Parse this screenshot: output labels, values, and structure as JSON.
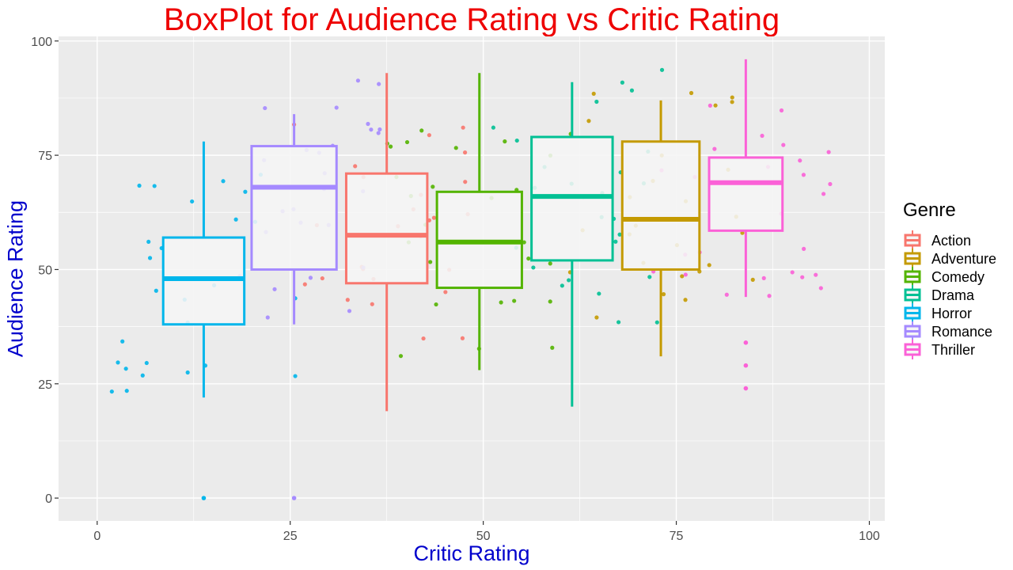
{
  "chart_data": {
    "type": "boxplot",
    "title": "BoxPlot for Audience Rating vs Critic Rating",
    "xlabel": "Critic Rating",
    "ylabel": "Audience Rating",
    "xlim": [
      -5,
      102
    ],
    "ylim": [
      -5,
      101
    ],
    "x_ticks": [
      0,
      25,
      50,
      75,
      100
    ],
    "y_ticks": [
      0,
      25,
      50,
      75,
      100
    ],
    "grid": true,
    "legend": {
      "title": "Genre",
      "position": "right"
    },
    "colors": {
      "panel_bg": "#EBEBEB",
      "grid": "#FFFFFF",
      "title": "#EE0000",
      "axis_title": "#0000CC",
      "box_fill": "#F5F5F5"
    },
    "series": [
      {
        "name": "Action",
        "color": "#F8766D",
        "x": 37.5,
        "width": 10.5,
        "q1": 47,
        "median": 57.5,
        "q3": 71,
        "whisker_low": 19,
        "whisker_high": 93,
        "outliers": []
      },
      {
        "name": "Adventure",
        "color": "#C49A00",
        "x": 73,
        "width": 10,
        "q1": 50,
        "median": 61,
        "q3": 78,
        "whisker_low": 31,
        "whisker_high": 87,
        "outliers": []
      },
      {
        "name": "Comedy",
        "color": "#53B400",
        "x": 49.5,
        "width": 11,
        "q1": 46,
        "median": 56,
        "q3": 67,
        "whisker_low": 28,
        "whisker_high": 93,
        "outliers": []
      },
      {
        "name": "Drama",
        "color": "#00C094",
        "x": 61.5,
        "width": 10.5,
        "q1": 52,
        "median": 66,
        "q3": 79,
        "whisker_low": 20,
        "whisker_high": 91,
        "outliers": []
      },
      {
        "name": "Horror",
        "color": "#00B6EB",
        "x": 13.8,
        "width": 10.5,
        "q1": 38,
        "median": 48,
        "q3": 57,
        "whisker_low": 22,
        "whisker_high": 78,
        "outliers": [
          0
        ]
      },
      {
        "name": "Romance",
        "color": "#A58AFF",
        "x": 25.5,
        "width": 11,
        "q1": 50,
        "median": 68,
        "q3": 77,
        "whisker_low": 38,
        "whisker_high": 84,
        "outliers": [
          0
        ]
      },
      {
        "name": "Thriller",
        "color": "#FB61D7",
        "x": 84,
        "width": 9.5,
        "q1": 58.5,
        "median": 69,
        "q3": 74.5,
        "whisker_low": 44,
        "whisker_high": 96,
        "outliers": [
          34,
          29,
          24
        ]
      }
    ]
  }
}
